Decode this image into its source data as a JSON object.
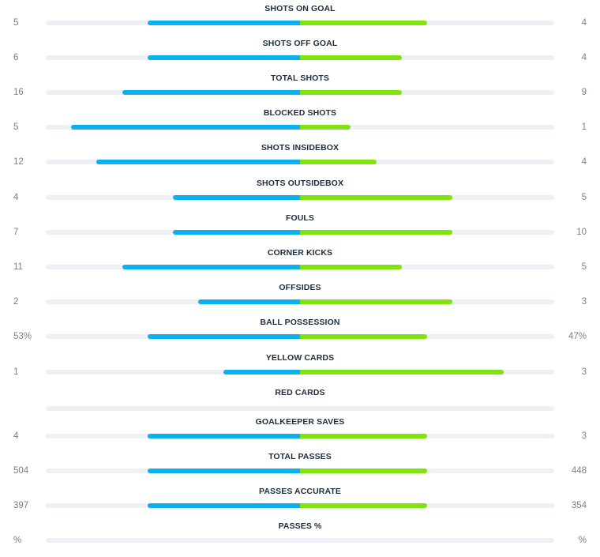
{
  "colors": {
    "home": "#0bb0f2",
    "away": "#7fe30f",
    "track": "#edf0f4"
  },
  "stats": [
    {
      "label": "SHOTS ON GOAL",
      "home": "5",
      "away": "4",
      "home_fraction": 0.6,
      "away_fraction": 0.5
    },
    {
      "label": "SHOTS OFF GOAL",
      "home": "6",
      "away": "4",
      "home_fraction": 0.6,
      "away_fraction": 0.4
    },
    {
      "label": "TOTAL SHOTS",
      "home": "16",
      "away": "9",
      "home_fraction": 0.7,
      "away_fraction": 0.4
    },
    {
      "label": "BLOCKED SHOTS",
      "home": "5",
      "away": "1",
      "home_fraction": 0.9,
      "away_fraction": 0.2
    },
    {
      "label": "SHOTS INSIDEBOX",
      "home": "12",
      "away": "4",
      "home_fraction": 0.8,
      "away_fraction": 0.3
    },
    {
      "label": "SHOTS OUTSIDEBOX",
      "home": "4",
      "away": "5",
      "home_fraction": 0.5,
      "away_fraction": 0.6
    },
    {
      "label": "FOULS",
      "home": "7",
      "away": "10",
      "home_fraction": 0.5,
      "away_fraction": 0.6
    },
    {
      "label": "CORNER KICKS",
      "home": "11",
      "away": "5",
      "home_fraction": 0.7,
      "away_fraction": 0.4
    },
    {
      "label": "OFFSIDES",
      "home": "2",
      "away": "3",
      "home_fraction": 0.4,
      "away_fraction": 0.6
    },
    {
      "label": "BALL POSSESSION",
      "home": "53%",
      "away": "47%",
      "home_fraction": 0.6,
      "away_fraction": 0.5
    },
    {
      "label": "YELLOW CARDS",
      "home": "1",
      "away": "3",
      "home_fraction": 0.3,
      "away_fraction": 0.8
    },
    {
      "label": "RED CARDS",
      "home": "",
      "away": "",
      "home_fraction": 0,
      "away_fraction": 0
    },
    {
      "label": "GOALKEEPER SAVES",
      "home": "4",
      "away": "3",
      "home_fraction": 0.6,
      "away_fraction": 0.5
    },
    {
      "label": "TOTAL PASSES",
      "home": "504",
      "away": "448",
      "home_fraction": 0.6,
      "away_fraction": 0.5
    },
    {
      "label": "PASSES ACCURATE",
      "home": "397",
      "away": "354",
      "home_fraction": 0.6,
      "away_fraction": 0.5
    },
    {
      "label": "PASSES %",
      "home": "%",
      "away": "%",
      "home_fraction": 0,
      "away_fraction": 0
    }
  ]
}
